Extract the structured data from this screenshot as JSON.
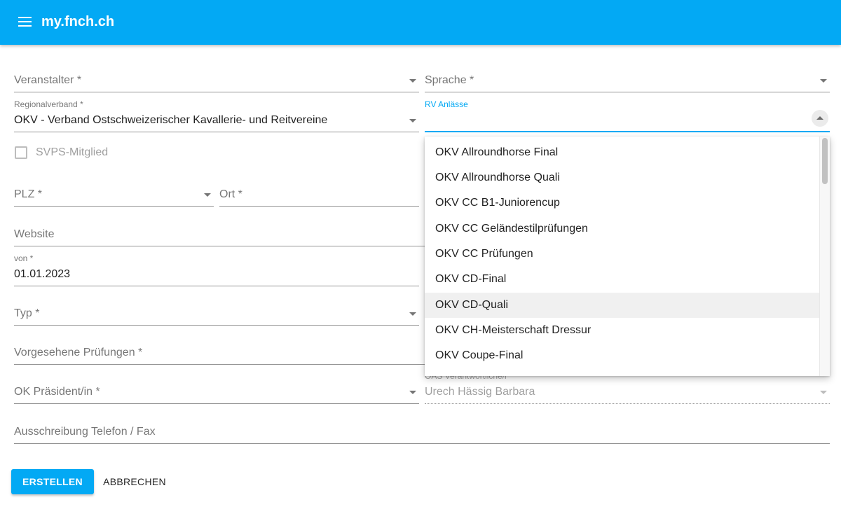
{
  "app": {
    "title": "my.fnch.ch",
    "menu_icon": "hamburger-menu-icon"
  },
  "form": {
    "veranstalter": {
      "label": "Veranstalter *"
    },
    "sprache": {
      "label": "Sprache *"
    },
    "regionalverband": {
      "label": "Regionalverband *",
      "value": "OKV - Verband Ostschweizerischer Kavallerie- und Reitvereine"
    },
    "rv_anlaesse": {
      "label": "RV Anlässe",
      "value": ""
    },
    "svps_mitglied": {
      "label": "SVPS-Mitglied",
      "checked": false
    },
    "plz": {
      "label": "PLZ *"
    },
    "ort": {
      "label": "Ort *"
    },
    "website": {
      "label": "Website"
    },
    "von": {
      "label": "von *",
      "value": "01.01.2023"
    },
    "typ": {
      "label": "Typ *"
    },
    "vorgesehene_pruefungen": {
      "label": "Vorgesehene Prüfungen *"
    },
    "ok_praesident": {
      "label": "OK Präsident/in *"
    },
    "oas_verantwortliche": {
      "label": "OAS Verantwortliche/r",
      "value": "Urech Hässig Barbara"
    },
    "ausschreibung_telefon": {
      "label": "Ausschreibung Telefon / Fax"
    }
  },
  "dropdown": {
    "items": [
      "OKV Allroundhorse Final",
      "OKV Allroundhorse Quali",
      "OKV CC B1-Juniorencup",
      "OKV CC Geländestilprüfungen",
      "OKV CC Prüfungen",
      "OKV CD-Final",
      "OKV CD-Quali",
      "OKV CH-Meisterschaft Dressur",
      "OKV Coupe-Final"
    ],
    "hovered_item": "OKV CD-Quali"
  },
  "actions": {
    "create_label": "ERSTELLEN",
    "cancel_label": "ABBRECHEN"
  },
  "colors": {
    "primary": "#03a9f4"
  }
}
